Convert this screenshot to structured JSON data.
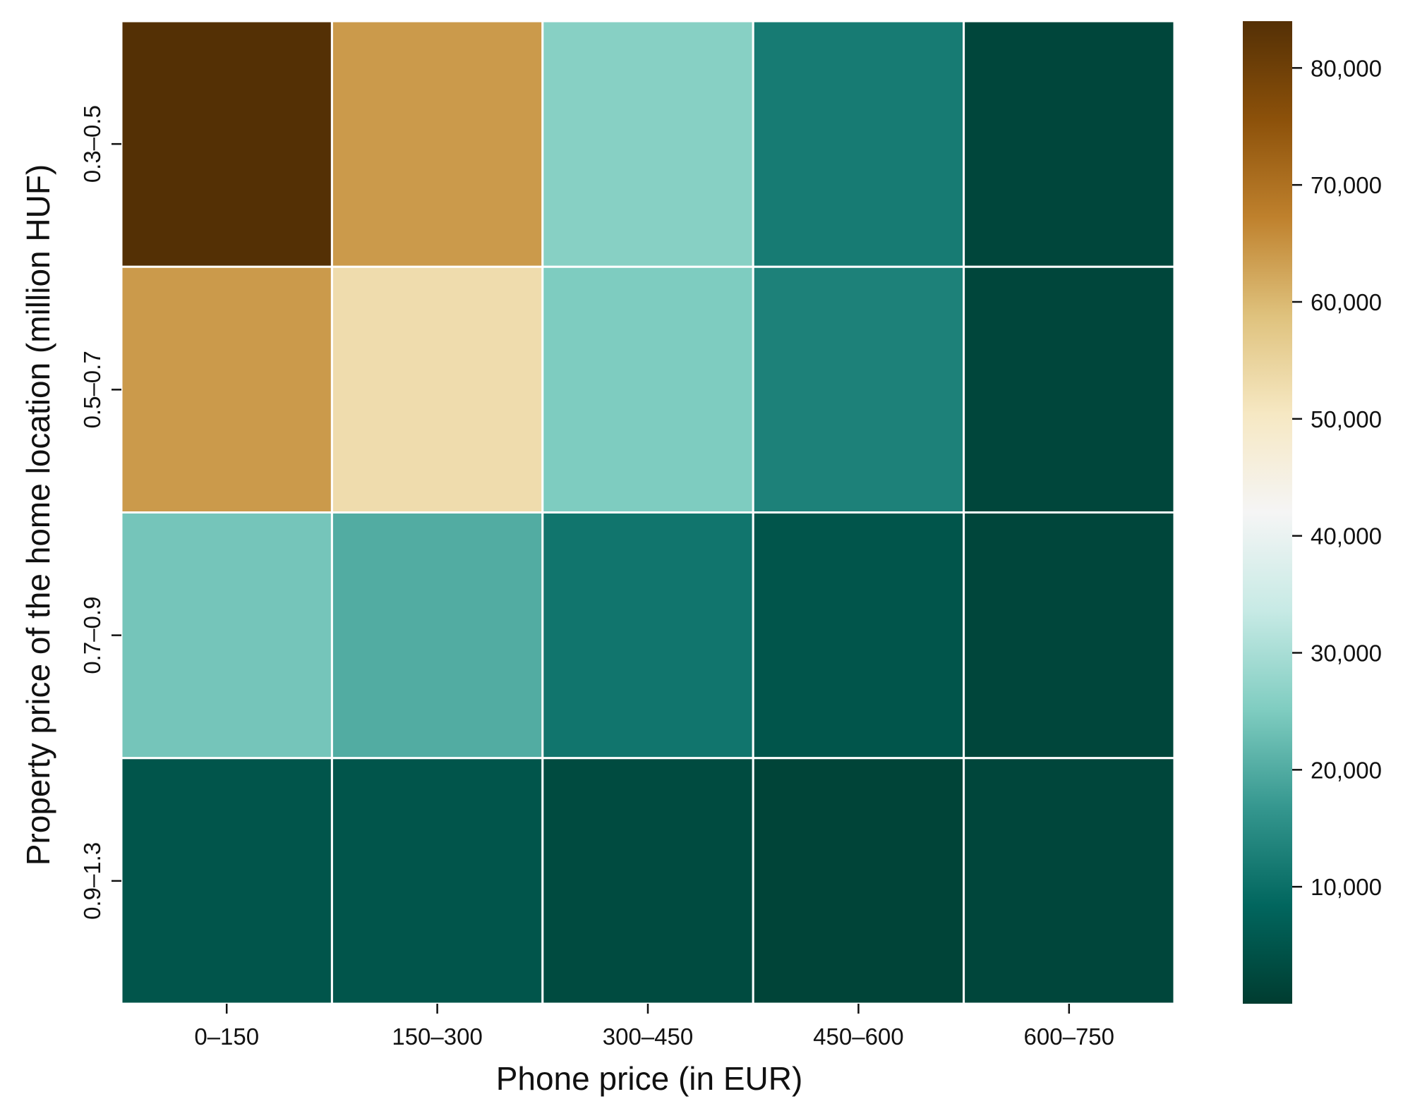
{
  "chart_data": {
    "type": "heatmap",
    "xlabel": "Phone price (in EUR)",
    "ylabel": "Property price of the home location (million HUF)",
    "x_categories": [
      "0–150",
      "150–300",
      "300–450",
      "450–600",
      "600–750"
    ],
    "y_categories": [
      "0.3–0.5",
      "0.5–0.7",
      "0.7–0.9",
      "0.9–1.3"
    ],
    "values": [
      [
        84000,
        64000,
        26000,
        12000,
        2000
      ],
      [
        64000,
        53000,
        25000,
        13000,
        2000
      ],
      [
        24000,
        20000,
        11000,
        5000,
        2000
      ],
      [
        5000,
        5000,
        3000,
        1500,
        2000
      ]
    ],
    "colorbar": {
      "min": 0,
      "max": 84000,
      "ticks": [
        10000,
        20000,
        30000,
        40000,
        50000,
        60000,
        70000,
        80000
      ],
      "tick_labels": [
        "10,000",
        "20,000",
        "30,000",
        "40,000",
        "50,000",
        "60,000",
        "70,000",
        "80,000"
      ],
      "colormap": "BrBG_r",
      "colormap_stops": [
        "#003c30",
        "#01665e",
        "#35978f",
        "#80cdc1",
        "#c7eae5",
        "#f5f5f5",
        "#f6e8c3",
        "#dfc27d",
        "#bf812d",
        "#8c510a",
        "#543005"
      ]
    },
    "cell_border_color": "#ffffff",
    "grid": false
  }
}
